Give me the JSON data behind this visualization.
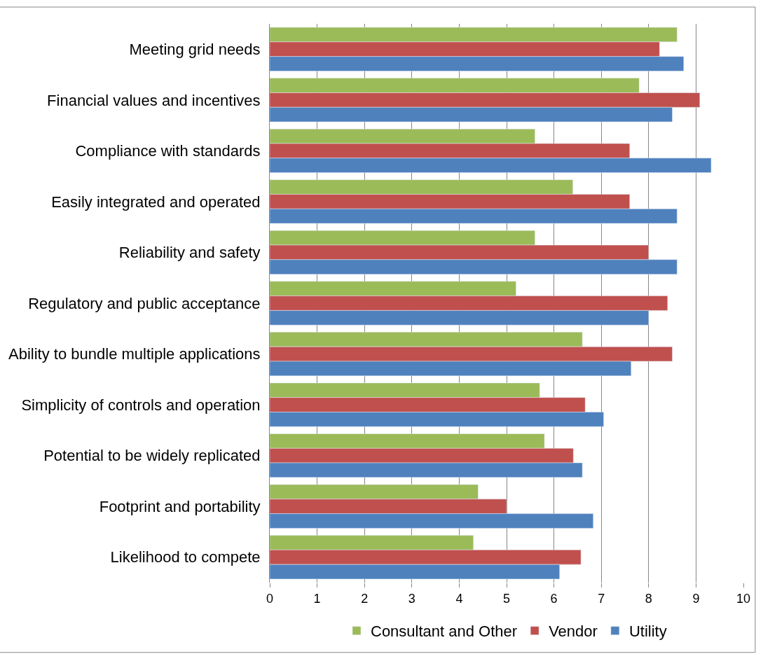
{
  "chart_data": {
    "type": "bar",
    "orientation": "horizontal",
    "categories": [
      "Meeting grid needs",
      "Financial values and incentives",
      "Compliance with standards",
      "Easily integrated and operated",
      "Reliability and safety",
      "Regulatory and public acceptance",
      "Ability to bundle multiple applications",
      "Simplicity of controls and operation",
      "Potential to be widely replicated",
      "Footprint and portability",
      "Likelihood to compete"
    ],
    "series": [
      {
        "name": "Consultant and Other",
        "color": "#9bbb59",
        "values": [
          8.6,
          7.8,
          5.6,
          6.4,
          5.6,
          5.2,
          6.6,
          5.7,
          5.8,
          4.4,
          4.3
        ]
      },
      {
        "name": "Vendor",
        "color": "#c0504d",
        "values": [
          8.23,
          9.08,
          7.6,
          7.6,
          8.0,
          8.4,
          8.5,
          6.66,
          6.41,
          5.0,
          6.57
        ]
      },
      {
        "name": "Utility",
        "color": "#4f81bd",
        "values": [
          8.74,
          8.5,
          9.32,
          8.6,
          8.6,
          8.0,
          7.63,
          7.05,
          6.6,
          6.83,
          6.12
        ]
      }
    ],
    "xlim": [
      0,
      10
    ],
    "xticks": [
      0,
      1,
      2,
      3,
      4,
      5,
      6,
      7,
      8,
      9,
      10
    ],
    "grid": "x",
    "legend": "bottom"
  }
}
